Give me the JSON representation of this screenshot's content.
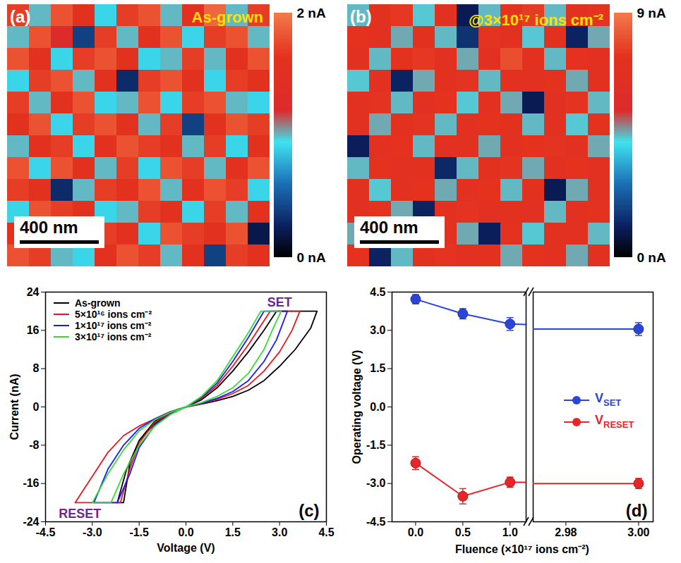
{
  "chart_data": [
    {
      "type": "heatmap",
      "panel": "(a)",
      "title": "As-grown",
      "scale_bar": "400 nm",
      "colorbar": {
        "range": [
          0,
          2
        ],
        "ticks": [
          {
            "value": 0,
            "label": "0 nA"
          },
          {
            "value": 2,
            "label": "2 nA"
          }
        ]
      },
      "cells": [
        [
          1.7,
          1.0,
          1.8,
          1.6,
          0.9,
          1.7,
          1.8,
          1.0,
          1.6,
          1.9,
          1.0,
          1.7
        ],
        [
          1.0,
          1.8,
          1.2,
          0.4,
          1.7,
          1.0,
          1.6,
          1.8,
          0.9,
          1.7,
          1.8,
          1.0
        ],
        [
          1.8,
          1.6,
          0.9,
          1.7,
          1.8,
          1.6,
          0.9,
          1.0,
          1.7,
          1.0,
          1.6,
          1.8
        ],
        [
          0.9,
          1.7,
          1.8,
          1.0,
          1.6,
          0.3,
          1.7,
          1.8,
          1.6,
          0.9,
          1.7,
          1.6
        ],
        [
          1.7,
          1.0,
          1.6,
          1.8,
          0.9,
          1.0,
          1.8,
          0.9,
          1.7,
          1.8,
          1.0,
          0.9
        ],
        [
          1.6,
          1.8,
          0.9,
          1.7,
          1.8,
          1.6,
          1.0,
          1.7,
          0.4,
          1.6,
          1.8,
          1.7
        ],
        [
          1.0,
          1.6,
          1.7,
          0.9,
          1.6,
          1.8,
          1.7,
          1.6,
          1.0,
          1.7,
          0.9,
          1.6
        ],
        [
          1.8,
          0.9,
          1.8,
          1.6,
          1.0,
          1.7,
          0.9,
          1.8,
          1.7,
          1.0,
          1.6,
          1.8
        ],
        [
          1.7,
          1.6,
          0.3,
          1.0,
          1.7,
          1.6,
          1.8,
          1.0,
          1.6,
          1.8,
          1.7,
          0.9
        ],
        [
          0.9,
          1.8,
          1.7,
          1.6,
          0.9,
          1.0,
          1.7,
          1.6,
          0.9,
          1.7,
          1.0,
          1.6
        ],
        [
          1.6,
          1.0,
          1.6,
          1.8,
          1.7,
          1.6,
          0.9,
          1.8,
          1.7,
          1.6,
          1.8,
          0.2
        ],
        [
          1.8,
          1.7,
          1.0,
          0.9,
          1.6,
          1.8,
          1.7,
          1.0,
          1.6,
          0.4,
          1.7,
          1.6
        ]
      ]
    },
    {
      "type": "heatmap",
      "panel": "(b)",
      "title": "@3×10¹⁷ ions cm⁻²",
      "scale_bar": "400 nm",
      "colorbar": {
        "range": [
          0,
          9
        ],
        "ticks": [
          {
            "value": 0,
            "label": "0 nA"
          },
          {
            "value": 9,
            "label": "9 nA"
          }
        ]
      },
      "cells": [
        [
          4.5,
          7.2,
          7.5,
          4.4,
          7.0,
          1.0,
          4.5,
          7.3,
          7.6,
          4.5,
          7.0,
          7.4
        ],
        [
          7.3,
          7.0,
          4.6,
          7.2,
          4.5,
          1.5,
          7.4,
          7.0,
          4.4,
          7.2,
          1.2,
          4.6
        ],
        [
          7.0,
          4.5,
          7.3,
          7.5,
          7.1,
          4.6,
          7.0,
          8.0,
          7.2,
          4.5,
          7.3,
          7.0
        ],
        [
          4.4,
          7.1,
          1.2,
          4.6,
          7.2,
          7.4,
          4.5,
          7.1,
          7.0,
          7.3,
          4.6,
          7.2
        ],
        [
          7.2,
          7.4,
          4.5,
          7.0,
          7.3,
          4.4,
          7.2,
          4.6,
          1.0,
          7.1,
          7.4,
          4.5
        ],
        [
          7.0,
          4.6,
          7.2,
          7.4,
          4.5,
          7.0,
          7.3,
          7.2,
          4.5,
          7.0,
          4.4,
          7.3
        ],
        [
          1.1,
          7.0,
          7.3,
          4.5,
          7.1,
          7.2,
          4.6,
          7.0,
          7.3,
          7.4,
          7.1,
          4.6
        ],
        [
          4.5,
          7.3,
          7.0,
          7.2,
          1.3,
          4.5,
          7.2,
          7.4,
          4.6,
          7.0,
          7.3,
          7.0
        ],
        [
          7.2,
          4.4,
          7.1,
          7.3,
          4.6,
          7.0,
          7.3,
          4.5,
          7.2,
          1.0,
          4.6,
          7.2
        ],
        [
          7.0,
          7.3,
          4.6,
          1.2,
          7.2,
          7.4,
          7.0,
          7.2,
          7.0,
          4.5,
          7.1,
          7.3
        ],
        [
          4.6,
          7.1,
          7.2,
          4.5,
          7.0,
          4.6,
          1.1,
          7.3,
          4.4,
          7.2,
          7.0,
          4.5
        ],
        [
          7.3,
          1.2,
          4.5,
          7.2,
          7.4,
          7.0,
          7.2,
          4.6,
          7.3,
          7.0,
          4.6,
          7.1
        ]
      ]
    },
    {
      "type": "line",
      "panel": "(c)",
      "x_label": "Voltage (V)",
      "y_label": "Current (nA)",
      "xlim": [
        -4.5,
        4.5
      ],
      "xticks": [
        -4.5,
        {
          "value": -3,
          "label": "-3.0"
        },
        -1.5,
        {
          "value": 0,
          "label": "0.0"
        },
        1.5,
        {
          "value": 3,
          "label": "3.0"
        },
        4.5
      ],
      "ylim": [
        -24,
        24
      ],
      "yticks": [
        -24,
        -16,
        -8,
        0,
        8,
        16,
        24
      ],
      "legend": "top-left",
      "annotations": [
        {
          "text": "SET",
          "x": 3.0,
          "y": 21.8
        },
        {
          "text": "RESET",
          "x": -3.4,
          "y": -22.3
        }
      ],
      "series": [
        {
          "name": "As-grown",
          "color": "#000000",
          "x": [
            0,
            0.5,
            1.0,
            1.5,
            2.0,
            2.5,
            3.0,
            3.5,
            4.0,
            4.2,
            3.5,
            2.9,
            2.5,
            2.0,
            1.5,
            1.0,
            0.5,
            0,
            -0.5,
            -1.0,
            -1.5,
            -1.8,
            -2.0,
            -2.2,
            -1.9,
            -1.5,
            -1.0,
            -0.5,
            0
          ],
          "values": [
            0,
            0.6,
            1.3,
            2.2,
            3.5,
            5.5,
            8.5,
            12,
            16.5,
            20,
            20,
            20,
            16,
            11.5,
            7.5,
            4,
            1.5,
            0,
            -1.2,
            -3,
            -7,
            -12,
            -20,
            -20,
            -13,
            -7,
            -3.5,
            -1.3,
            0
          ]
        },
        {
          "name": "5×10¹⁶ ions cm⁻²",
          "color": "#e8161b",
          "x": [
            0,
            0.5,
            1.0,
            1.5,
            2.0,
            2.5,
            3.0,
            3.4,
            3.65,
            3.2,
            2.7,
            2.3,
            2.0,
            1.5,
            1.0,
            0.5,
            0,
            -0.5,
            -1.0,
            -1.5,
            -1.8,
            -2.1,
            -2.5,
            -3.0,
            -3.55,
            -3.0,
            -2.5,
            -2.0,
            -1.5,
            -1.0,
            -0.5,
            0
          ],
          "values": [
            0,
            0.7,
            1.6,
            2.8,
            4.5,
            7.5,
            11.5,
            16,
            20,
            20,
            20,
            16,
            13,
            8.5,
            4.5,
            1.8,
            0,
            -1.3,
            -3.2,
            -7.5,
            -13,
            -20,
            -20,
            -20,
            -20,
            -14.5,
            -9.5,
            -6,
            -4,
            -2.5,
            -1,
            0
          ]
        },
        {
          "name": "1×10¹⁷ ions cm⁻²",
          "color": "#1a1aff",
          "x": [
            0,
            0.5,
            1.0,
            1.5,
            2.0,
            2.5,
            2.9,
            3.25,
            2.9,
            2.5,
            2.0,
            1.5,
            1.0,
            0.5,
            0,
            -0.5,
            -1.0,
            -1.5,
            -1.8,
            -2.2,
            -2.6,
            -2.95,
            -2.5,
            -2.0,
            -1.5,
            -1.0,
            -0.5,
            0
          ],
          "values": [
            0,
            0.8,
            1.8,
            3.2,
            5.5,
            9.5,
            14,
            20,
            20,
            20,
            14.5,
            9.5,
            5,
            2,
            0,
            -1.5,
            -3.8,
            -8.5,
            -14,
            -20,
            -20,
            -20,
            -13,
            -8,
            -4.5,
            -2.5,
            -1,
            0
          ]
        },
        {
          "name": "3×10¹⁷ ions cm⁻²",
          "color": "#33dd33",
          "x": [
            0,
            0.5,
            1.0,
            1.5,
            2.0,
            2.5,
            2.8,
            3.05,
            2.7,
            2.4,
            2.0,
            1.5,
            1.0,
            0.5,
            0,
            -0.5,
            -1.0,
            -1.5,
            -2.0,
            -2.4,
            -2.7,
            -3.0,
            -2.5,
            -2.0,
            -1.5,
            -1.0,
            -0.5,
            0
          ],
          "values": [
            0,
            0.9,
            2.2,
            4,
            7,
            12,
            16.5,
            20,
            20,
            20,
            15.5,
            10.5,
            5.5,
            2.2,
            0,
            -1.6,
            -4,
            -8,
            -14,
            -20,
            -20,
            -20,
            -14,
            -9,
            -5,
            -2.7,
            -1.1,
            0
          ]
        }
      ]
    },
    {
      "type": "line",
      "panel": "(d)",
      "marker": "circle",
      "line_style": "solid",
      "x_label": "Fluence (×10¹⁷ ions cm⁻²)",
      "y_label": "Operating voltage (V)",
      "xlim": [
        [
          -0.25,
          1.17
        ],
        [
          2.971,
          3.004
        ]
      ],
      "xticks": [
        [
          {
            "value": 0,
            "label": "0.0"
          },
          0.5,
          {
            "value": 1,
            "label": "1.0"
          }
        ],
        [
          2.98,
          {
            "value": 3,
            "label": "3.00"
          }
        ]
      ],
      "ylim": [
        -4.5,
        4.5
      ],
      "yticks": [
        -4.5,
        {
          "value": -3,
          "label": "-3.0"
        },
        -1.5,
        {
          "value": 0,
          "label": "0.0"
        },
        1.5,
        {
          "value": 3,
          "label": "3.0"
        },
        4.5
      ],
      "legend": "right",
      "x": [
        0,
        0.5,
        1,
        3
      ],
      "series": [
        {
          "name": "VSET",
          "color": "#2b45d8",
          "values": [
            4.22,
            3.65,
            3.25,
            3.05
          ],
          "errors": [
            0.18,
            0.2,
            0.25,
            0.25
          ]
        },
        {
          "name": "VRESET",
          "color": "#e8262a",
          "values": [
            -2.2,
            -3.5,
            -2.95,
            -3.0
          ],
          "errors": [
            0.25,
            0.3,
            0.2,
            0.2
          ]
        }
      ]
    }
  ]
}
